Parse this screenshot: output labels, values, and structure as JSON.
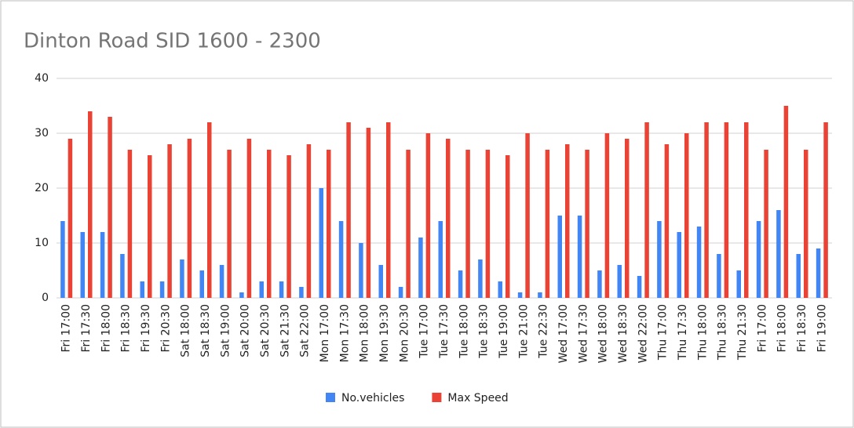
{
  "chart_data": {
    "type": "bar",
    "title": "Dinton Road SID 1600 - 2300",
    "categories": [
      "Fri 17:00",
      "Fri 17:30",
      "Fri 18:00",
      "Fri 18:30",
      "Fri 19:30",
      "Fri 20:30",
      "Sat 18:00",
      "Sat 18:30",
      "Sat 19:00",
      "Sat 20:00",
      "Sat 20:30",
      "Sat 21:30",
      "Sat 22:00",
      "Mon 17:00",
      "Mon 17:30",
      "Mon 18:00",
      "Mon 19:30",
      "Mon 20:30",
      "Tue 17:00",
      "Tue 17:30",
      "Tue 18:00",
      "Tue 18:30",
      "Tue 19:00",
      "Tue 21:00",
      "Tue 22:30",
      "Wed 17:00",
      "Wed 17:30",
      "Wed 18:00",
      "Wed 18:30",
      "Wed 22:00",
      "Thu 17:00",
      "Thu 17:30",
      "Thu 18:00",
      "Thu 18:30",
      "Thu 21:30",
      "Fri 17:00",
      "Fri 18:00",
      "Fri 18:30",
      "Fri 19:00"
    ],
    "series": [
      {
        "name": "No.vehicles",
        "color": "#4285f4",
        "values": [
          14,
          12,
          12,
          8,
          3,
          3,
          7,
          5,
          6,
          1,
          3,
          3,
          2,
          20,
          14,
          10,
          6,
          2,
          11,
          14,
          5,
          7,
          3,
          1,
          1,
          15,
          15,
          5,
          6,
          4,
          14,
          12,
          13,
          8,
          5,
          14,
          16,
          8,
          9
        ]
      },
      {
        "name": "Max Speed",
        "color": "#ea4335",
        "values": [
          29,
          34,
          33,
          27,
          26,
          28,
          29,
          32,
          27,
          29,
          27,
          26,
          28,
          27,
          32,
          31,
          32,
          27,
          30,
          29,
          27,
          27,
          26,
          30,
          27,
          28,
          27,
          30,
          29,
          32,
          28,
          30,
          32,
          32,
          32,
          27,
          35,
          27,
          32
        ]
      }
    ],
    "ylim": [
      0,
      40
    ],
    "yticks": [
      0,
      10,
      20,
      30,
      40
    ],
    "grid": true,
    "legend": "bottom"
  }
}
